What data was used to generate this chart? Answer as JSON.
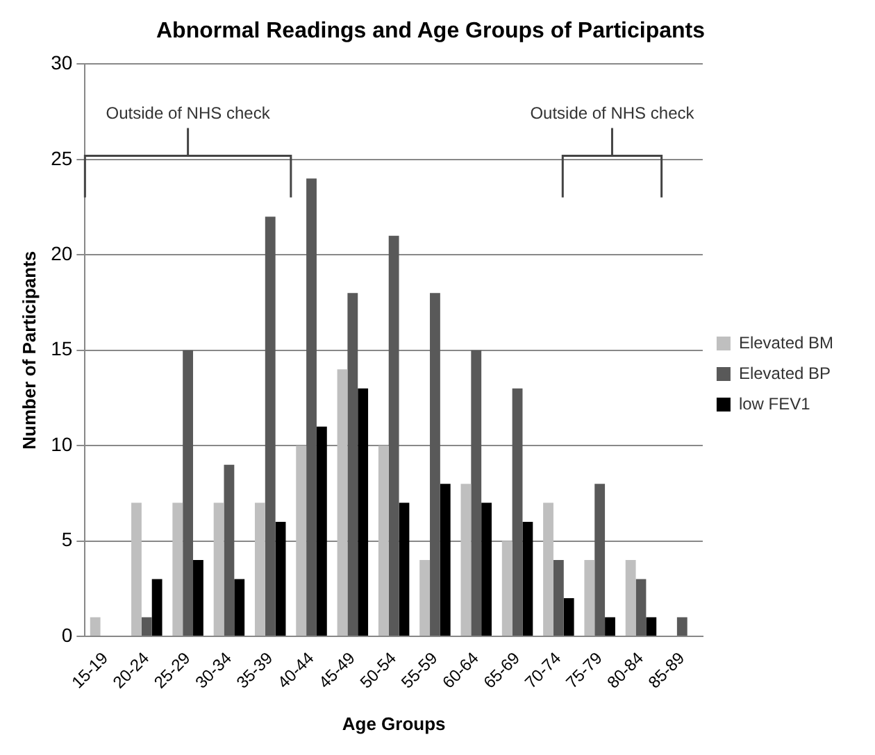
{
  "chart_data": {
    "type": "bar",
    "title": "Abnormal Readings and Age Groups of Participants",
    "xlabel": "Age Groups",
    "ylabel": "Number of Participants",
    "categories": [
      "15-19",
      "20-24",
      "25-29",
      "30-34",
      "35-39",
      "40-44",
      "45-49",
      "50-54",
      "55-59",
      "60-64",
      "65-69",
      "70-74",
      "75-79",
      "80-84",
      "85-89"
    ],
    "series": [
      {
        "name": "Elevated BM",
        "color": "#bfbfbf",
        "values": [
          1,
          7,
          7,
          7,
          7,
          10,
          14,
          10,
          4,
          8,
          5,
          7,
          4,
          4,
          0
        ]
      },
      {
        "name": "Elevated BP",
        "color": "#595959",
        "values": [
          0,
          1,
          15,
          9,
          22,
          24,
          18,
          21,
          18,
          15,
          13,
          4,
          8,
          3,
          1
        ]
      },
      {
        "name": "low FEV1",
        "color": "#000000",
        "values": [
          0,
          3,
          4,
          3,
          6,
          11,
          13,
          7,
          8,
          7,
          6,
          2,
          1,
          1,
          0
        ]
      }
    ],
    "ylim": [
      0,
      30
    ],
    "yticks": [
      0,
      5,
      10,
      15,
      20,
      25,
      30
    ],
    "grid": "y",
    "legend": "right",
    "annotations": [
      "Outside of NHS check",
      "Outside of NHS check"
    ]
  }
}
